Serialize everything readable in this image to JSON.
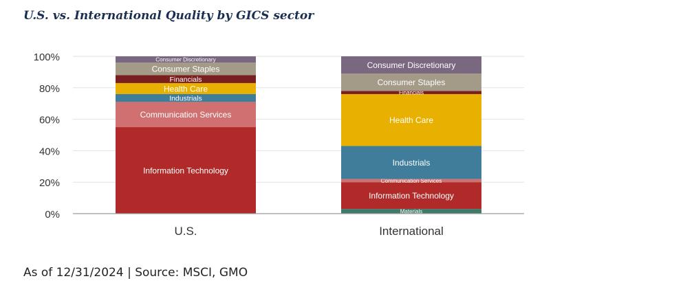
{
  "header": {
    "title": "U.S. vs. International Quality by GICS sector"
  },
  "footer": {
    "note": "As of 12/31/2024 | Source: MSCI, GMO"
  },
  "chart_data": {
    "type": "bar",
    "stacked": true,
    "categories": [
      "U.S.",
      "International"
    ],
    "ylim": [
      0,
      100
    ],
    "y_ticks": [
      0,
      20,
      40,
      60,
      80,
      100
    ],
    "y_tick_format": "{v}%",
    "grid": true,
    "series": [
      {
        "name": "Materials",
        "color": "#3e7a6a",
        "values": [
          0,
          3
        ]
      },
      {
        "name": "Information Technology",
        "color": "#b02a2a",
        "values": [
          55,
          17
        ]
      },
      {
        "name": "Communication Services",
        "color": "#d07070",
        "values": [
          16,
          2
        ]
      },
      {
        "name": "Industrials",
        "color": "#3f7d9b",
        "values": [
          5,
          21
        ]
      },
      {
        "name": "Health Care",
        "color": "#e8b000",
        "values": [
          7,
          33
        ]
      },
      {
        "name": "Financials",
        "color": "#7a1f1f",
        "values": [
          5,
          2
        ]
      },
      {
        "name": "Consumer Staples",
        "color": "#a39a87",
        "values": [
          8,
          11
        ]
      },
      {
        "name": "Consumer Discretionary",
        "color": "#7a6880",
        "values": [
          4,
          11
        ]
      }
    ]
  }
}
